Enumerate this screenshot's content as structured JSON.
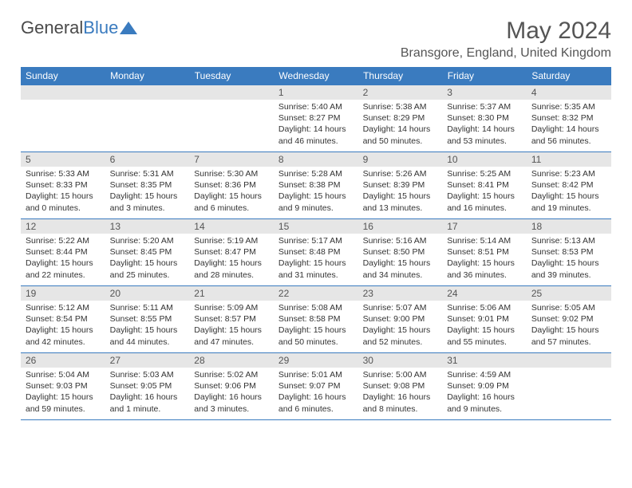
{
  "logo": {
    "text1": "General",
    "text2": "Blue"
  },
  "title": "May 2024",
  "location": "Bransgore, England, United Kingdom",
  "colors": {
    "accent": "#3a7bbf",
    "headerText": "#555",
    "dayBg": "#e6e6e6"
  },
  "dayHeaders": [
    "Sunday",
    "Monday",
    "Tuesday",
    "Wednesday",
    "Thursday",
    "Friday",
    "Saturday"
  ],
  "weeks": [
    [
      {
        "n": "",
        "lines": []
      },
      {
        "n": "",
        "lines": []
      },
      {
        "n": "",
        "lines": []
      },
      {
        "n": "1",
        "lines": [
          "Sunrise: 5:40 AM",
          "Sunset: 8:27 PM",
          "Daylight: 14 hours and 46 minutes."
        ]
      },
      {
        "n": "2",
        "lines": [
          "Sunrise: 5:38 AM",
          "Sunset: 8:29 PM",
          "Daylight: 14 hours and 50 minutes."
        ]
      },
      {
        "n": "3",
        "lines": [
          "Sunrise: 5:37 AM",
          "Sunset: 8:30 PM",
          "Daylight: 14 hours and 53 minutes."
        ]
      },
      {
        "n": "4",
        "lines": [
          "Sunrise: 5:35 AM",
          "Sunset: 8:32 PM",
          "Daylight: 14 hours and 56 minutes."
        ]
      }
    ],
    [
      {
        "n": "5",
        "lines": [
          "Sunrise: 5:33 AM",
          "Sunset: 8:33 PM",
          "Daylight: 15 hours and 0 minutes."
        ]
      },
      {
        "n": "6",
        "lines": [
          "Sunrise: 5:31 AM",
          "Sunset: 8:35 PM",
          "Daylight: 15 hours and 3 minutes."
        ]
      },
      {
        "n": "7",
        "lines": [
          "Sunrise: 5:30 AM",
          "Sunset: 8:36 PM",
          "Daylight: 15 hours and 6 minutes."
        ]
      },
      {
        "n": "8",
        "lines": [
          "Sunrise: 5:28 AM",
          "Sunset: 8:38 PM",
          "Daylight: 15 hours and 9 minutes."
        ]
      },
      {
        "n": "9",
        "lines": [
          "Sunrise: 5:26 AM",
          "Sunset: 8:39 PM",
          "Daylight: 15 hours and 13 minutes."
        ]
      },
      {
        "n": "10",
        "lines": [
          "Sunrise: 5:25 AM",
          "Sunset: 8:41 PM",
          "Daylight: 15 hours and 16 minutes."
        ]
      },
      {
        "n": "11",
        "lines": [
          "Sunrise: 5:23 AM",
          "Sunset: 8:42 PM",
          "Daylight: 15 hours and 19 minutes."
        ]
      }
    ],
    [
      {
        "n": "12",
        "lines": [
          "Sunrise: 5:22 AM",
          "Sunset: 8:44 PM",
          "Daylight: 15 hours and 22 minutes."
        ]
      },
      {
        "n": "13",
        "lines": [
          "Sunrise: 5:20 AM",
          "Sunset: 8:45 PM",
          "Daylight: 15 hours and 25 minutes."
        ]
      },
      {
        "n": "14",
        "lines": [
          "Sunrise: 5:19 AM",
          "Sunset: 8:47 PM",
          "Daylight: 15 hours and 28 minutes."
        ]
      },
      {
        "n": "15",
        "lines": [
          "Sunrise: 5:17 AM",
          "Sunset: 8:48 PM",
          "Daylight: 15 hours and 31 minutes."
        ]
      },
      {
        "n": "16",
        "lines": [
          "Sunrise: 5:16 AM",
          "Sunset: 8:50 PM",
          "Daylight: 15 hours and 34 minutes."
        ]
      },
      {
        "n": "17",
        "lines": [
          "Sunrise: 5:14 AM",
          "Sunset: 8:51 PM",
          "Daylight: 15 hours and 36 minutes."
        ]
      },
      {
        "n": "18",
        "lines": [
          "Sunrise: 5:13 AM",
          "Sunset: 8:53 PM",
          "Daylight: 15 hours and 39 minutes."
        ]
      }
    ],
    [
      {
        "n": "19",
        "lines": [
          "Sunrise: 5:12 AM",
          "Sunset: 8:54 PM",
          "Daylight: 15 hours and 42 minutes."
        ]
      },
      {
        "n": "20",
        "lines": [
          "Sunrise: 5:11 AM",
          "Sunset: 8:55 PM",
          "Daylight: 15 hours and 44 minutes."
        ]
      },
      {
        "n": "21",
        "lines": [
          "Sunrise: 5:09 AM",
          "Sunset: 8:57 PM",
          "Daylight: 15 hours and 47 minutes."
        ]
      },
      {
        "n": "22",
        "lines": [
          "Sunrise: 5:08 AM",
          "Sunset: 8:58 PM",
          "Daylight: 15 hours and 50 minutes."
        ]
      },
      {
        "n": "23",
        "lines": [
          "Sunrise: 5:07 AM",
          "Sunset: 9:00 PM",
          "Daylight: 15 hours and 52 minutes."
        ]
      },
      {
        "n": "24",
        "lines": [
          "Sunrise: 5:06 AM",
          "Sunset: 9:01 PM",
          "Daylight: 15 hours and 55 minutes."
        ]
      },
      {
        "n": "25",
        "lines": [
          "Sunrise: 5:05 AM",
          "Sunset: 9:02 PM",
          "Daylight: 15 hours and 57 minutes."
        ]
      }
    ],
    [
      {
        "n": "26",
        "lines": [
          "Sunrise: 5:04 AM",
          "Sunset: 9:03 PM",
          "Daylight: 15 hours and 59 minutes."
        ]
      },
      {
        "n": "27",
        "lines": [
          "Sunrise: 5:03 AM",
          "Sunset: 9:05 PM",
          "Daylight: 16 hours and 1 minute."
        ]
      },
      {
        "n": "28",
        "lines": [
          "Sunrise: 5:02 AM",
          "Sunset: 9:06 PM",
          "Daylight: 16 hours and 3 minutes."
        ]
      },
      {
        "n": "29",
        "lines": [
          "Sunrise: 5:01 AM",
          "Sunset: 9:07 PM",
          "Daylight: 16 hours and 6 minutes."
        ]
      },
      {
        "n": "30",
        "lines": [
          "Sunrise: 5:00 AM",
          "Sunset: 9:08 PM",
          "Daylight: 16 hours and 8 minutes."
        ]
      },
      {
        "n": "31",
        "lines": [
          "Sunrise: 4:59 AM",
          "Sunset: 9:09 PM",
          "Daylight: 16 hours and 9 minutes."
        ]
      },
      {
        "n": "",
        "lines": []
      }
    ]
  ]
}
